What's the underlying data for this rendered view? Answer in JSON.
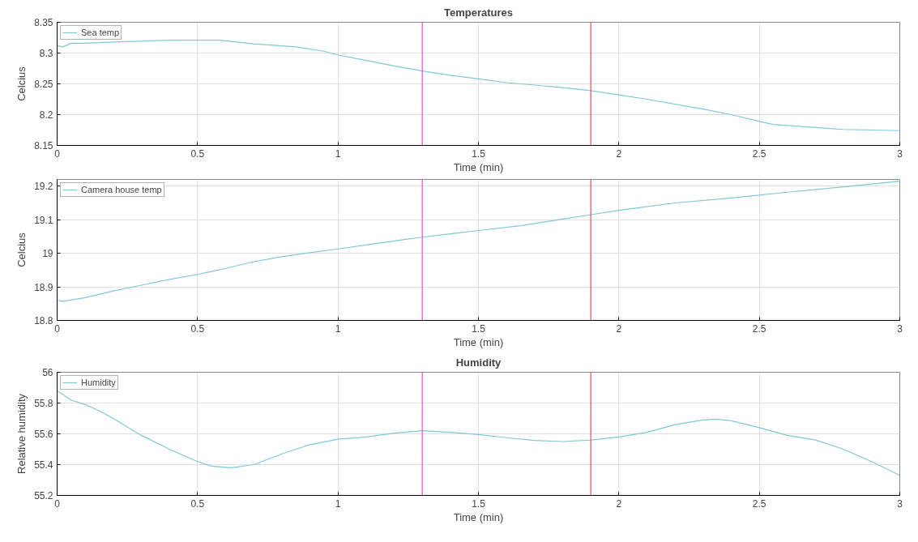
{
  "chart_data": [
    {
      "type": "line",
      "title": "Temperatures",
      "xlabel": "Time (min)",
      "ylabel": "Celcius",
      "xlim": [
        0,
        3
      ],
      "xticks": [
        0,
        0.5,
        1,
        1.5,
        2,
        2.5,
        3
      ],
      "ylim": [
        8.15,
        8.35
      ],
      "yticks": [
        8.15,
        8.2,
        8.25,
        8.3,
        8.35
      ],
      "grid": true,
      "legend": "top left",
      "x": [
        0,
        0.02,
        0.05,
        0.1,
        0.2,
        0.4,
        0.58,
        0.7,
        0.85,
        0.95,
        1.0,
        1.1,
        1.2,
        1.3,
        1.4,
        1.5,
        1.6,
        1.7,
        1.8,
        1.9,
        2.0,
        2.1,
        2.2,
        2.3,
        2.4,
        2.5,
        2.55,
        2.7,
        2.8,
        3.0
      ],
      "series": [
        {
          "name": "Sea temp",
          "color": "#7ec8d8",
          "values": [
            8.312,
            8.31,
            8.316,
            8.316,
            8.318,
            8.321,
            8.321,
            8.315,
            8.31,
            8.303,
            8.297,
            8.288,
            8.279,
            8.271,
            8.264,
            8.258,
            8.252,
            8.248,
            8.244,
            8.239,
            8.232,
            8.225,
            8.217,
            8.209,
            8.2,
            8.189,
            8.184,
            8.179,
            8.176,
            8.174
          ]
        }
      ],
      "ref_lines": [
        {
          "axis": "x",
          "value": 1.3,
          "color": "#ee44ee"
        },
        {
          "axis": "x",
          "value": 1.9,
          "color": "#e8505a"
        }
      ]
    },
    {
      "type": "line",
      "xlabel": "Time (min)",
      "ylabel": "Celcius",
      "xlim": [
        0,
        3
      ],
      "xticks": [
        0,
        0.5,
        1,
        1.5,
        2,
        2.5,
        3
      ],
      "ylim": [
        18.8,
        19.22
      ],
      "yticks": [
        18.8,
        18.9,
        {
          "value": 19,
          "label": "19"
        },
        19.1,
        19.2
      ],
      "grid": true,
      "legend": "top left",
      "x": [
        0,
        0.02,
        0.1,
        0.2,
        0.3,
        0.4,
        0.5,
        0.6,
        0.7,
        0.8,
        0.9,
        1.0,
        1.1,
        1.2,
        1.3,
        1.4,
        1.5,
        1.65,
        1.8,
        1.9,
        2.0,
        2.2,
        2.4,
        2.6,
        2.8,
        3.0
      ],
      "series": [
        {
          "name": "Camera house temp",
          "color": "#7ec8d8",
          "values": [
            18.86,
            18.857,
            18.868,
            18.888,
            18.905,
            18.922,
            18.937,
            18.955,
            18.975,
            18.99,
            19.002,
            19.013,
            19.025,
            19.037,
            19.048,
            19.058,
            19.068,
            19.082,
            19.102,
            19.115,
            19.128,
            19.15,
            19.165,
            19.182,
            19.198,
            19.215
          ]
        }
      ],
      "ref_lines": [
        {
          "axis": "x",
          "value": 1.3,
          "color": "#ee44ee"
        },
        {
          "axis": "x",
          "value": 1.9,
          "color": "#e8505a"
        }
      ]
    },
    {
      "type": "line",
      "title": "Humidity",
      "xlabel": "Time (min)",
      "ylabel": "Relative humidity",
      "xlim": [
        0,
        3
      ],
      "xticks": [
        0,
        0.5,
        1,
        1.5,
        2,
        2.5,
        3
      ],
      "ylim": [
        55.2,
        56
      ],
      "yticks": [
        55.2,
        55.4,
        55.6,
        55.8,
        56
      ],
      "grid": true,
      "legend": "top left",
      "x": [
        0,
        0.05,
        0.1,
        0.15,
        0.2,
        0.3,
        0.4,
        0.5,
        0.55,
        0.62,
        0.7,
        0.8,
        0.9,
        1.0,
        1.1,
        1.2,
        1.3,
        1.4,
        1.5,
        1.6,
        1.7,
        1.8,
        1.9,
        2.0,
        2.1,
        2.2,
        2.3,
        2.35,
        2.4,
        2.5,
        2.6,
        2.7,
        2.8,
        2.9,
        3.0
      ],
      "series": [
        {
          "name": "Humidity",
          "color": "#7ec8d8",
          "values": [
            55.88,
            55.82,
            55.79,
            55.75,
            55.7,
            55.59,
            55.5,
            55.42,
            55.39,
            55.38,
            55.4,
            55.47,
            55.53,
            55.565,
            55.58,
            55.605,
            55.62,
            55.61,
            55.595,
            55.575,
            55.557,
            55.55,
            55.56,
            55.58,
            55.61,
            55.66,
            55.69,
            55.695,
            55.685,
            55.64,
            55.59,
            55.56,
            55.5,
            55.42,
            55.33
          ]
        }
      ],
      "ref_lines": [
        {
          "axis": "x",
          "value": 1.3,
          "color": "#ee44ee"
        },
        {
          "axis": "x",
          "value": 1.9,
          "color": "#e8505a"
        }
      ]
    }
  ]
}
